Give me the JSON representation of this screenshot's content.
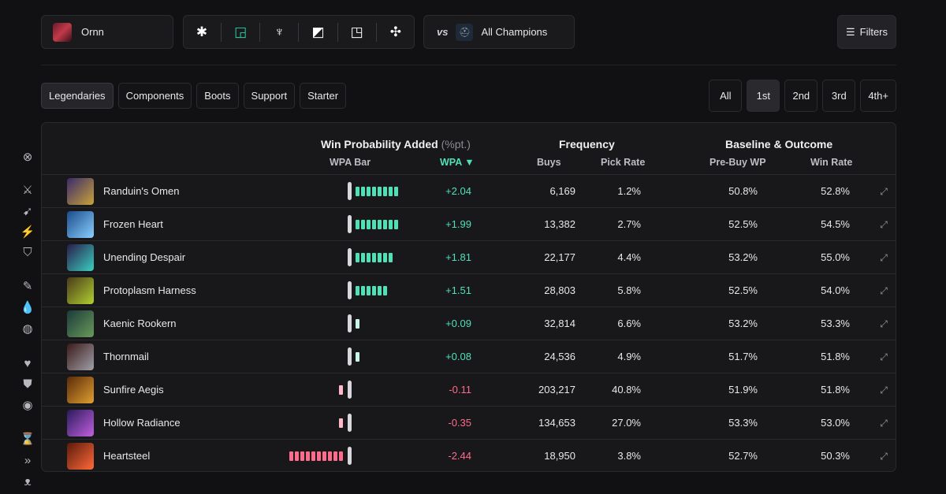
{
  "champion": {
    "name": "Ornn"
  },
  "roles": [
    {
      "icon": "asterisk-all-roles-icon",
      "glyph": "✱",
      "color": "#ffffff"
    },
    {
      "icon": "top-lane-icon",
      "glyph": "◲",
      "color": "#2ad3a4"
    },
    {
      "icon": "jungle-icon",
      "glyph": "♆",
      "color": "#ffffff"
    },
    {
      "icon": "mid-lane-icon",
      "glyph": "◩",
      "color": "#ffffff"
    },
    {
      "icon": "bot-lane-icon",
      "glyph": "◳",
      "color": "#ffffff"
    },
    {
      "icon": "support-icon",
      "glyph": "✣",
      "color": "#ffffff"
    }
  ],
  "versus": {
    "vs_label": "vs",
    "opponent": "All Champions"
  },
  "filters_label": "Filters",
  "categories": [
    "Legendaries",
    "Components",
    "Boots",
    "Support",
    "Starter"
  ],
  "order_tabs": [
    "All",
    "1st",
    "2nd",
    "3rd",
    "4th+"
  ],
  "headers": {
    "wpa_group": "Win Probability Added",
    "wpa_unit": "(%pt.)",
    "frequency": "Frequency",
    "baseline": "Baseline & Outcome",
    "wpa_bar": "WPA Bar",
    "wpa": "WPA ▼",
    "buys": "Buys",
    "pick_rate": "Pick Rate",
    "pre_buy_wp": "Pre-Buy WP",
    "win_rate": "Win Rate"
  },
  "colors": {
    "positive": "#4fe0b6",
    "negative": "#ff6b8a",
    "negative_light": "#ffb8c8"
  },
  "items": [
    {
      "name": "Randuin's Omen",
      "wpa": 2.04,
      "wpa_text": "+2.04",
      "buys": "6,169",
      "pick_rate": "1.2%",
      "pre_buy_wp": "50.8%",
      "win_rate": "52.8%",
      "icon_colors": [
        "#3a2a6a",
        "#c9a33a"
      ]
    },
    {
      "name": "Frozen Heart",
      "wpa": 1.99,
      "wpa_text": "+1.99",
      "buys": "13,382",
      "pick_rate": "2.7%",
      "pre_buy_wp": "52.5%",
      "win_rate": "54.5%",
      "icon_colors": [
        "#1a4a8a",
        "#8ad0ff"
      ]
    },
    {
      "name": "Unending Despair",
      "wpa": 1.81,
      "wpa_text": "+1.81",
      "buys": "22,177",
      "pick_rate": "4.4%",
      "pre_buy_wp": "53.2%",
      "win_rate": "55.0%",
      "icon_colors": [
        "#2a1a4a",
        "#3ad0c0"
      ]
    },
    {
      "name": "Protoplasm Harness",
      "wpa": 1.51,
      "wpa_text": "+1.51",
      "buys": "28,803",
      "pick_rate": "5.8%",
      "pre_buy_wp": "52.5%",
      "win_rate": "54.0%",
      "icon_colors": [
        "#4a3a1a",
        "#b0d030"
      ]
    },
    {
      "name": "Kaenic Rookern",
      "wpa": 0.09,
      "wpa_text": "+0.09",
      "buys": "32,814",
      "pick_rate": "6.6%",
      "pre_buy_wp": "53.2%",
      "win_rate": "53.3%",
      "icon_colors": [
        "#1a3a3a",
        "#6a9a5a"
      ]
    },
    {
      "name": "Thornmail",
      "wpa": 0.08,
      "wpa_text": "+0.08",
      "buys": "24,536",
      "pick_rate": "4.9%",
      "pre_buy_wp": "51.7%",
      "win_rate": "51.8%",
      "icon_colors": [
        "#3a1a1a",
        "#a0a0a8"
      ]
    },
    {
      "name": "Sunfire Aegis",
      "wpa": -0.11,
      "wpa_text": "-0.11",
      "buys": "203,217",
      "pick_rate": "40.8%",
      "pre_buy_wp": "51.9%",
      "win_rate": "51.8%",
      "icon_colors": [
        "#5a2a0a",
        "#e0a030"
      ]
    },
    {
      "name": "Hollow Radiance",
      "wpa": -0.35,
      "wpa_text": "-0.35",
      "buys": "134,653",
      "pick_rate": "27.0%",
      "pre_buy_wp": "53.3%",
      "win_rate": "53.0%",
      "icon_colors": [
        "#2a1a5a",
        "#c060e0"
      ]
    },
    {
      "name": "Heartsteel",
      "wpa": -2.44,
      "wpa_text": "-2.44",
      "buys": "18,950",
      "pick_rate": "3.8%",
      "pre_buy_wp": "52.7%",
      "win_rate": "50.3%",
      "icon_colors": [
        "#5a1a0a",
        "#ff6a3a"
      ]
    }
  ],
  "sidebar_icons": [
    {
      "icon": "clear-filter-icon",
      "glyph": "⊗"
    },
    {
      "icon": "attack-damage-icon",
      "glyph": "⚔"
    },
    {
      "icon": "attack-speed-icon",
      "glyph": "➹"
    },
    {
      "icon": "crit-icon",
      "glyph": "⚡"
    },
    {
      "icon": "armor-pen-icon",
      "glyph": "⛉"
    },
    {
      "icon": "ability-power-icon",
      "glyph": "✎"
    },
    {
      "icon": "mana-icon",
      "glyph": "💧"
    },
    {
      "icon": "magic-pen-icon",
      "glyph": "◍"
    },
    {
      "icon": "health-icon",
      "glyph": "♥"
    },
    {
      "icon": "armor-icon",
      "glyph": "⛊"
    },
    {
      "icon": "magic-resist-icon",
      "glyph": "◉"
    },
    {
      "icon": "ability-haste-icon",
      "glyph": "⌛"
    },
    {
      "icon": "move-speed-icon",
      "glyph": "»"
    },
    {
      "icon": "lifesteal-icon",
      "glyph": "ᴥ"
    }
  ]
}
